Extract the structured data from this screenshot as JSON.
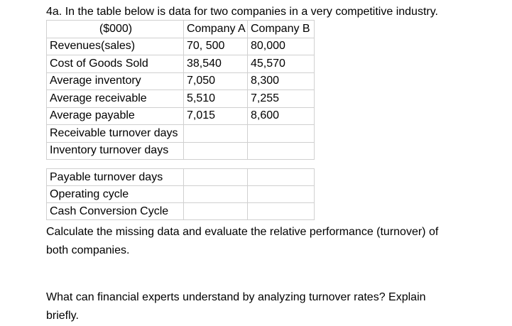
{
  "document": {
    "heading": "4a. In the table below is data for two companies in a very competitive industry.",
    "instruction": "Calculate the missing data and evaluate the relative performance (turnover) of\nboth companies.",
    "question": "What can financial experts understand by analyzing turnover rates? Explain\nbriefly."
  },
  "table": {
    "unit_label": "($000)",
    "columns": [
      "Company A",
      "Company B"
    ],
    "upper_rows": [
      {
        "label": "Revenues(sales)",
        "company_a": "70, 500",
        "company_b": "80,000"
      },
      {
        "label": "Cost of Goods Sold",
        "company_a": "38,540",
        "company_b": "45,570"
      },
      {
        "label": "Average inventory",
        "company_a": "7,050",
        "company_b": "8,300"
      },
      {
        "label": "Average receivable",
        "company_a": "5,510",
        "company_b": "7,255"
      },
      {
        "label": "Average payable",
        "company_a": "7,015",
        "company_b": "8,600"
      },
      {
        "label": "Receivable turnover days",
        "company_a": "",
        "company_b": ""
      },
      {
        "label": "Inventory turnover days",
        "company_a": "",
        "company_b": ""
      }
    ],
    "lower_rows": [
      {
        "label": "Payable turnover days",
        "company_a": "",
        "company_b": ""
      },
      {
        "label": "Operating cycle",
        "company_a": "",
        "company_b": ""
      },
      {
        "label": "Cash Conversion Cycle",
        "company_a": "",
        "company_b": ""
      }
    ]
  },
  "colors": {
    "border": "#d0d0d0",
    "text": "#000000",
    "background": "#ffffff"
  }
}
